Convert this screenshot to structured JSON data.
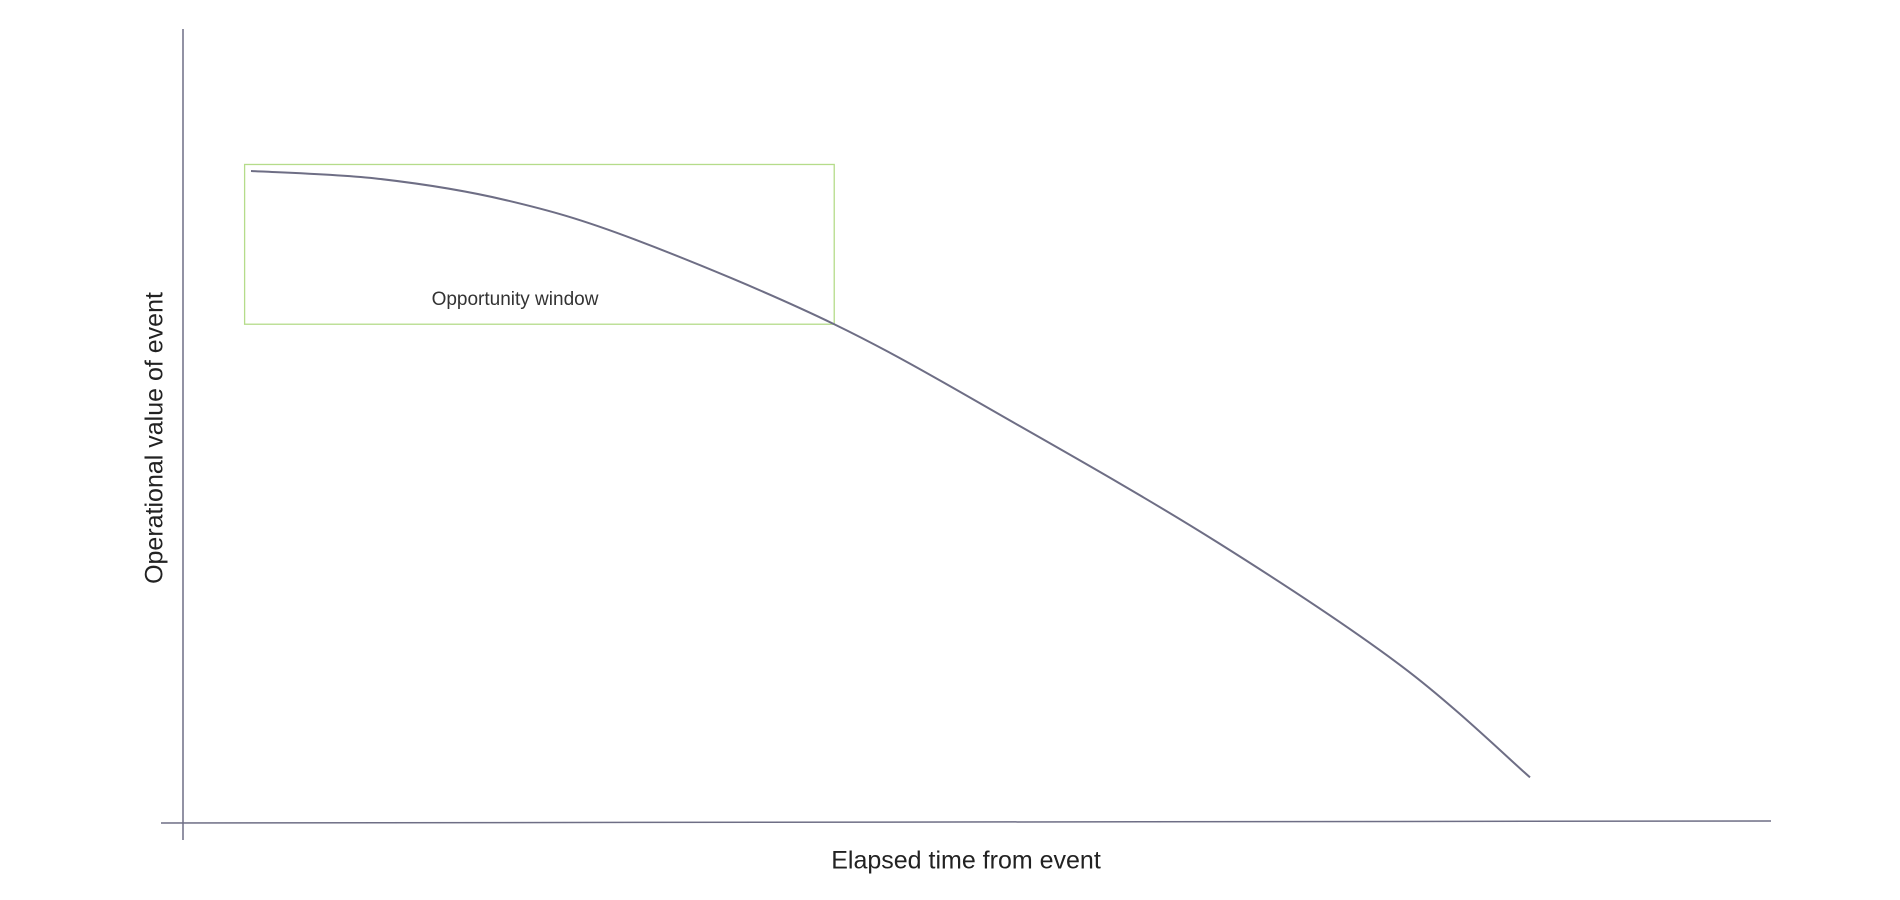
{
  "chart_data": {
    "type": "line",
    "title": "",
    "xlabel": "Elapsed time from event",
    "ylabel": "Operational value of event",
    "xlim": [
      0,
      100
    ],
    "ylim": [
      0,
      100
    ],
    "grid": false,
    "series": [
      {
        "x": [
          0,
          10,
          20,
          30,
          45.6,
          60,
          75.6,
          90,
          100
        ],
        "y": [
          100,
          98.8,
          95.5,
          89.5,
          76.5,
          61,
          43,
          24,
          7
        ]
      }
    ],
    "annotations": [
      {
        "type": "rectangle",
        "label": "Opportunity window",
        "x_range": [
          -0.5,
          45.6
        ],
        "y_range": [
          76.5,
          101
        ]
      }
    ],
    "colors": {
      "line": "#6e6e85",
      "axis": "#6e6e85",
      "window": "#b5dc8a"
    }
  }
}
